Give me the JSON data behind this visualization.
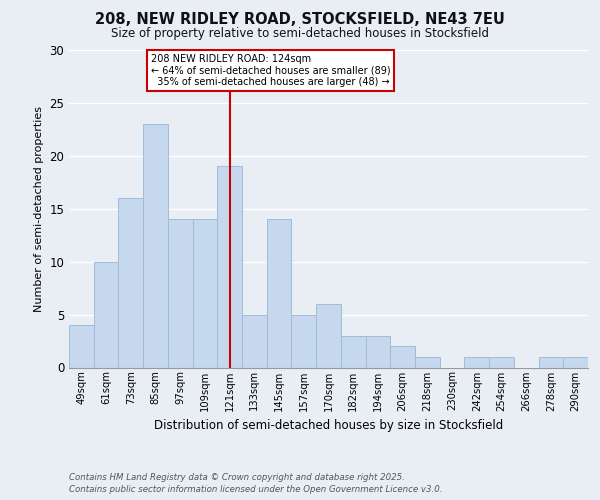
{
  "title_line1": "208, NEW RIDLEY ROAD, STOCKSFIELD, NE43 7EU",
  "title_line2": "Size of property relative to semi-detached houses in Stocksfield",
  "xlabel": "Distribution of semi-detached houses by size in Stocksfield",
  "ylabel": "Number of semi-detached properties",
  "categories": [
    "49sqm",
    "61sqm",
    "73sqm",
    "85sqm",
    "97sqm",
    "109sqm",
    "121sqm",
    "133sqm",
    "145sqm",
    "157sqm",
    "170sqm",
    "182sqm",
    "194sqm",
    "206sqm",
    "218sqm",
    "230sqm",
    "242sqm",
    "254sqm",
    "266sqm",
    "278sqm",
    "290sqm"
  ],
  "values": [
    4,
    10,
    16,
    23,
    14,
    14,
    19,
    5,
    14,
    5,
    6,
    3,
    3,
    2,
    1,
    0,
    1,
    1,
    0,
    1,
    1
  ],
  "bar_color": "#c5d8ed",
  "bar_edge_color": "#a0bcd8",
  "reference_line_index": 6,
  "reference_label": "208 NEW RIDLEY ROAD: 124sqm",
  "pct_smaller": 64,
  "count_smaller": 89,
  "pct_larger": 35,
  "count_larger": 48,
  "ylim": [
    0,
    30
  ],
  "yticks": [
    0,
    5,
    10,
    15,
    20,
    25,
    30
  ],
  "background_color": "#e8eef4",
  "annotation_box_color": "#ffffff",
  "annotation_box_edge_color": "#cc0000",
  "red_line_color": "#cc0000",
  "footer_line1": "Contains HM Land Registry data © Crown copyright and database right 2025.",
  "footer_line2": "Contains public sector information licensed under the Open Government Licence v3.0."
}
